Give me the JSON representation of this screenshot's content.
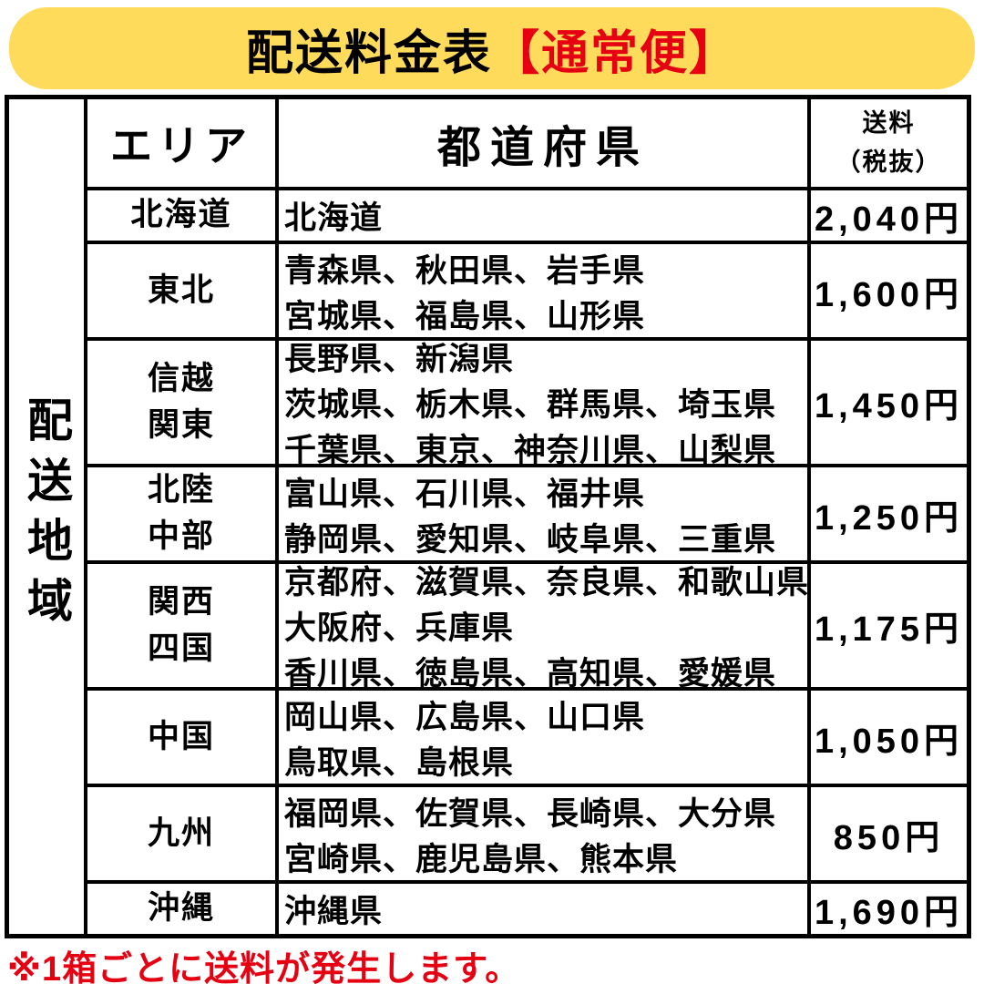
{
  "title": {
    "black_part": "配送料金表",
    "red_part": "【通常便】"
  },
  "side_label": "配送地域",
  "table": {
    "headers": {
      "area": "エリア",
      "prefectures": "都道府県",
      "fee_line1": "送料",
      "fee_line2": "（税抜）"
    },
    "rows": [
      {
        "area": [
          "北海道"
        ],
        "prefectures": [
          "北海道"
        ],
        "fee": "2,040円"
      },
      {
        "area": [
          "東北"
        ],
        "prefectures": [
          "青森県、秋田県、岩手県",
          "宮城県、福島県、山形県"
        ],
        "fee": "1,600円"
      },
      {
        "area": [
          "信越",
          "関東"
        ],
        "prefectures": [
          "長野県、新潟県",
          "茨城県、栃木県、群馬県、埼玉県",
          "千葉県、東京、神奈川県、山梨県"
        ],
        "fee": "1,450円"
      },
      {
        "area": [
          "北陸",
          "中部"
        ],
        "prefectures": [
          "富山県、石川県、福井県",
          "静岡県、愛知県、岐阜県、三重県"
        ],
        "fee": "1,250円"
      },
      {
        "area": [
          "関西",
          "四国"
        ],
        "prefectures": [
          "京都府、滋賀県、奈良県、和歌山県",
          "大阪府、兵庫県",
          "香川県、徳島県、高知県、愛媛県"
        ],
        "fee": "1,175円"
      },
      {
        "area": [
          "中国"
        ],
        "prefectures": [
          "岡山県、広島県、山口県",
          "鳥取県、島根県"
        ],
        "fee": "1,050円"
      },
      {
        "area": [
          "九州"
        ],
        "prefectures": [
          "福岡県、佐賀県、長崎県、大分県",
          "宮崎県、鹿児島県、熊本県"
        ],
        "fee": "850円"
      },
      {
        "area": [
          "沖縄"
        ],
        "prefectures": [
          "沖縄県"
        ],
        "fee": "1,690円"
      }
    ]
  },
  "footnote": "※1箱ごとに送料が発生します。",
  "colors": {
    "banner_yellow": "#FFDB5C",
    "accent_red": "#E50012",
    "text_black": "#000000",
    "border_black": "#000000"
  }
}
